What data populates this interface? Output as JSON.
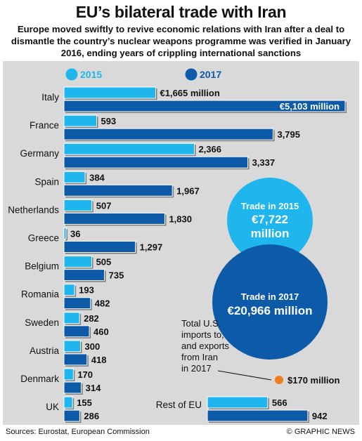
{
  "chart_data": {
    "type": "bar",
    "title": "EU’s bilateral trade with Iran",
    "subtitle": "Europe moved swiftly to revive economic relations with Iran after a deal to dismantle the country’s nuclear weapons programme was verified in January 2016, ending years of crippling international sanctions",
    "categories": [
      "Italy",
      "France",
      "Germany",
      "Spain",
      "Netherlands",
      "Greece",
      "Belgium",
      "Romania",
      "Sweden",
      "Austria",
      "Denmark",
      "UK"
    ],
    "series": [
      {
        "name": "2015",
        "color": "#1eb6ec",
        "values": [
          1665,
          593,
          2366,
          384,
          507,
          36,
          505,
          193,
          282,
          300,
          170,
          155
        ],
        "labels": [
          "€1,665 million",
          "593",
          "2,366",
          "384",
          "507",
          "36",
          "505",
          "193",
          "282",
          "300",
          "170",
          "155"
        ]
      },
      {
        "name": "2017",
        "color": "#0d5aa8",
        "values": [
          5103,
          3795,
          3337,
          1967,
          1830,
          1297,
          735,
          482,
          460,
          418,
          314,
          286
        ],
        "labels": [
          "€5,103 million",
          "3,795",
          "3,337",
          "1,967",
          "1,830",
          "1,297",
          "735",
          "482",
          "460",
          "418",
          "314",
          "286"
        ]
      }
    ],
    "rest_of_eu": {
      "label": "Rest of EU",
      "values": [
        566,
        942
      ],
      "labels": [
        "566",
        "942"
      ]
    },
    "bubbles": [
      {
        "title": "Trade in 2015",
        "value_label": "€7,722 million",
        "value": 7722,
        "color": "#1eb6ec"
      },
      {
        "title": "Trade in 2017",
        "value_label": "€20,966 million",
        "value": 20966,
        "color": "#0d5aa8"
      }
    ],
    "us_note": {
      "text": [
        "Total U.S.",
        "imports to,",
        "and exports",
        "from Iran",
        "in 2017"
      ],
      "value_label": "$170 million",
      "value": 170,
      "color": "#f07d1e"
    },
    "sources": "Sources: Eurostat, European Commission",
    "credit": "© GRAPHIC NEWS"
  }
}
